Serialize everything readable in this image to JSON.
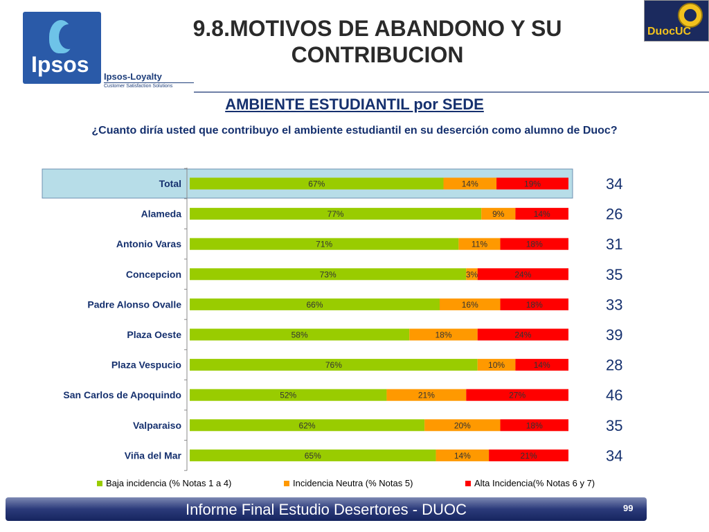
{
  "header": {
    "title": "9.8.MOTIVOS DE ABANDONO Y SU CONTRIBUCION",
    "logo_left": "Ipsos",
    "logo_left_sub1": "Ipsos-Loyalty",
    "logo_left_sub2": "Customer Satisfaction Solutions",
    "logo_right": "DuocUC"
  },
  "subtitle": "AMBIENTE ESTUDIANTIL por SEDE",
  "question": "¿Cuanto diría usted que contribuyo el ambiente estudiantil en su deserción como alumno de Duoc?",
  "chart_data": {
    "type": "bar",
    "orientation": "horizontal",
    "stacked": true,
    "normalized_percent": true,
    "categories": [
      "Total",
      "Alameda",
      "Antonio Varas",
      "Concepcion",
      "Padre Alonso Ovalle",
      "Plaza Oeste",
      "Plaza Vespucio",
      "San Carlos de Apoquindo",
      "Valparaiso",
      "Viña del Mar"
    ],
    "series": [
      {
        "name": "Baja incidencia (% Notas 1 a 4)",
        "values": [
          67,
          77,
          71,
          73,
          66,
          58,
          76,
          52,
          62,
          65
        ],
        "labels": [
          "67%",
          "77%",
          "71%",
          "73%",
          "66%",
          "58%",
          "76%",
          "52%",
          "62%",
          "65%"
        ],
        "color": "#99cc00"
      },
      {
        "name": "Incidencia Neutra (% Notas 5)",
        "values": [
          14,
          9,
          11,
          3,
          16,
          18,
          10,
          21,
          20,
          14
        ],
        "labels": [
          "14%",
          "9%",
          "11%",
          "3%",
          "16%",
          "18%",
          "10%",
          "21%",
          "20%",
          "14%"
        ],
        "color": "#ff9900"
      },
      {
        "name": "Alta Incidencia(% Notas 6 y 7)",
        "values": [
          19,
          14,
          18,
          24,
          18,
          24,
          14,
          27,
          18,
          21
        ],
        "labels": [
          "19%",
          "14%",
          "18%",
          "24%",
          "18%",
          "24%",
          "14%",
          "27%",
          "18%",
          "21%"
        ],
        "color": "#ff0000"
      }
    ],
    "counts": [
      "34",
      "26",
      "31",
      "35",
      "33",
      "39",
      "28",
      "46",
      "35",
      "34"
    ],
    "highlight_category": "Total",
    "highlight_color": "#b7dde8",
    "legend_position": "bottom",
    "xlim": [
      0,
      100
    ],
    "grid": false
  },
  "footer": {
    "text": "Informe Final Estudio Desertores - DUOC",
    "page": "99"
  }
}
